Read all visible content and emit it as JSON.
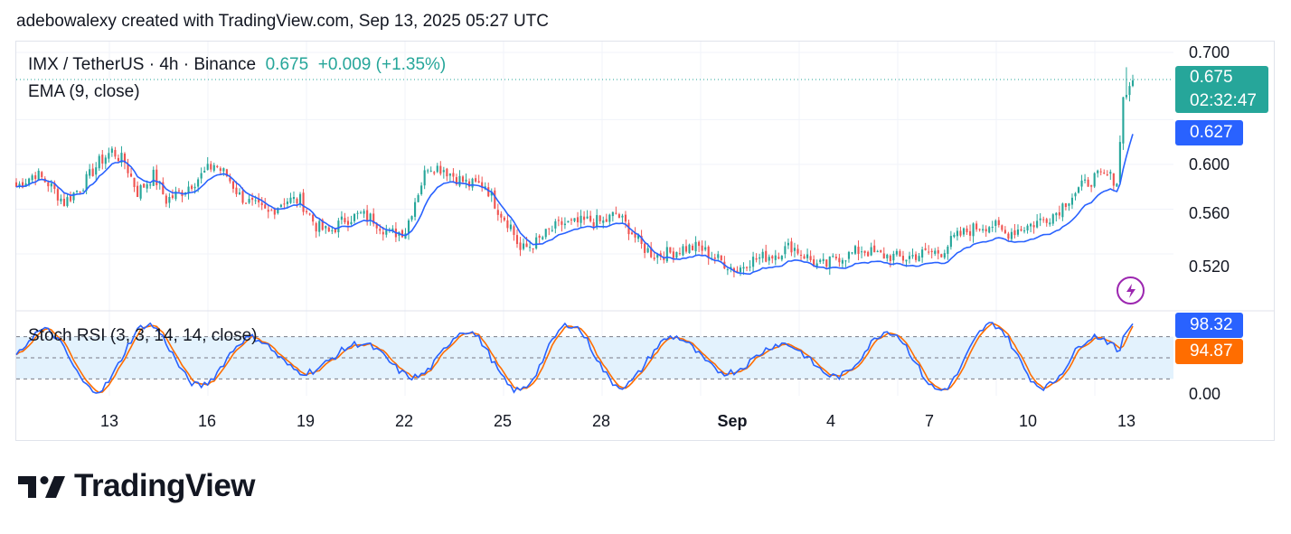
{
  "header": {
    "text": "adebowalexy created with TradingView.com, Sep 13, 2025 05:27 UTC"
  },
  "legend": {
    "symbol": "IMX / TetherUS · 4h · Binance",
    "price": "0.675",
    "change": "+0.009 (+1.35%)",
    "ema": "EMA (9, close)",
    "stoch": "Stoch RSI (3, 3, 14, 14, close)"
  },
  "price_tags": {
    "last": "0.675",
    "countdown": "02:32:47",
    "ema": "0.627",
    "k": "98.32",
    "d": "94.87"
  },
  "price_axis": [
    "0.700",
    "0.600",
    "0.560",
    "0.520"
  ],
  "stoch_axis": [
    "0.00"
  ],
  "x_axis": [
    {
      "label": "13",
      "bold": false
    },
    {
      "label": "16",
      "bold": false
    },
    {
      "label": "19",
      "bold": false
    },
    {
      "label": "22",
      "bold": false
    },
    {
      "label": "25",
      "bold": false
    },
    {
      "label": "28",
      "bold": false
    },
    {
      "label": "Sep",
      "bold": true
    },
    {
      "label": "4",
      "bold": false
    },
    {
      "label": "7",
      "bold": false
    },
    {
      "label": "10",
      "bold": false
    },
    {
      "label": "13",
      "bold": false
    }
  ],
  "logo": {
    "text": "TradingView"
  },
  "colors": {
    "up": "#26a69a",
    "down": "#ef5350",
    "ema": "#2962ff",
    "k": "#2962ff",
    "d": "#ff6d00",
    "band": "#e3f2fd"
  },
  "chart_data": {
    "type": "candlestick",
    "title": "IMX / TetherUS · 4h · Binance",
    "ylim": [
      0.505,
      0.705
    ],
    "x_dates_start": "Aug 10",
    "ema_period": 9,
    "ema_last": 0.627,
    "last_price": 0.675,
    "close_path": [
      [
        0,
        0.58
      ],
      [
        6,
        0.592
      ],
      [
        10,
        0.583
      ],
      [
        15,
        0.566
      ],
      [
        21,
        0.582
      ],
      [
        26,
        0.602
      ],
      [
        30,
        0.612
      ],
      [
        34,
        0.602
      ],
      [
        38,
        0.575
      ],
      [
        43,
        0.59
      ],
      [
        47,
        0.568
      ],
      [
        52,
        0.576
      ],
      [
        58,
        0.59
      ],
      [
        62,
        0.6
      ],
      [
        66,
        0.59
      ],
      [
        70,
        0.572
      ],
      [
        74,
        0.564
      ],
      [
        79,
        0.556
      ],
      [
        84,
        0.568
      ],
      [
        89,
        0.568
      ],
      [
        94,
        0.545
      ],
      [
        98,
        0.539
      ],
      [
        103,
        0.551
      ],
      [
        108,
        0.555
      ],
      [
        112,
        0.551
      ],
      [
        117,
        0.538
      ],
      [
        122,
        0.541
      ],
      [
        125,
        0.568
      ],
      [
        129,
        0.599
      ],
      [
        134,
        0.596
      ],
      [
        138,
        0.588
      ],
      [
        142,
        0.582
      ],
      [
        147,
        0.582
      ],
      [
        151,
        0.56
      ],
      [
        155,
        0.545
      ],
      [
        158,
        0.523
      ],
      [
        163,
        0.53
      ],
      [
        167,
        0.54
      ],
      [
        171,
        0.547
      ],
      [
        175,
        0.547
      ],
      [
        180,
        0.55
      ],
      [
        184,
        0.548
      ],
      [
        188,
        0.556
      ],
      [
        192,
        0.543
      ],
      [
        196,
        0.527
      ],
      [
        200,
        0.519
      ],
      [
        205,
        0.521
      ],
      [
        209,
        0.525
      ],
      [
        214,
        0.526
      ],
      [
        218,
        0.518
      ],
      [
        222,
        0.512
      ],
      [
        226,
        0.505
      ],
      [
        229,
        0.513
      ],
      [
        234,
        0.517
      ],
      [
        238,
        0.52
      ],
      [
        243,
        0.527
      ],
      [
        247,
        0.519
      ],
      [
        251,
        0.51
      ],
      [
        254,
        0.51
      ],
      [
        257,
        0.517
      ],
      [
        261,
        0.519
      ],
      [
        265,
        0.524
      ],
      [
        270,
        0.519
      ],
      [
        274,
        0.518
      ],
      [
        278,
        0.516
      ],
      [
        282,
        0.519
      ],
      [
        286,
        0.521
      ],
      [
        290,
        0.522
      ],
      [
        294,
        0.534
      ],
      [
        298,
        0.54
      ],
      [
        302,
        0.545
      ],
      [
        306,
        0.546
      ],
      [
        310,
        0.538
      ],
      [
        314,
        0.542
      ],
      [
        318,
        0.546
      ],
      [
        322,
        0.551
      ],
      [
        326,
        0.557
      ],
      [
        330,
        0.57
      ],
      [
        334,
        0.58
      ],
      [
        338,
        0.588
      ],
      [
        342,
        0.59
      ],
      [
        345,
        0.585
      ],
      [
        346,
        0.62
      ],
      [
        347,
        0.66
      ],
      [
        348,
        0.662
      ],
      [
        349,
        0.67
      ],
      [
        350,
        0.675
      ]
    ],
    "stoch_rsi": {
      "k_last": 98.32,
      "d_last": 94.87,
      "bands": [
        20,
        50,
        80
      ],
      "ylim": [
        0,
        100
      ]
    }
  }
}
